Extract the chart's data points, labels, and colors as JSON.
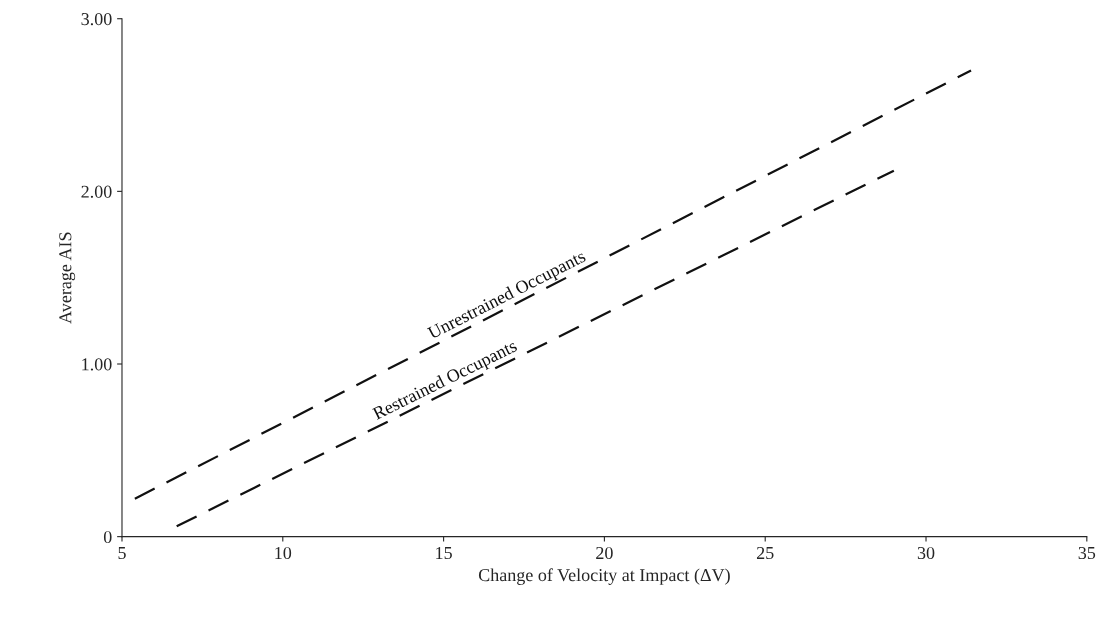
{
  "chart_data": {
    "type": "line",
    "xlabel": "Change of Velocity at Impact (ΔV)",
    "ylabel": "Average AIS",
    "xlim": [
      5,
      35
    ],
    "xticks": [
      5,
      10,
      15,
      20,
      25,
      30,
      35
    ],
    "ylim": [
      0,
      3.0
    ],
    "yticks": [
      0,
      {
        "value": 1.0,
        "label": "1.00"
      },
      {
        "value": 2.0,
        "label": "2.00"
      },
      {
        "value": 3.0,
        "label": "3.00"
      }
    ],
    "grid": false,
    "legend": false,
    "marker": "none",
    "line_style": "dashed",
    "series": [
      {
        "name": "Unrestrained Occupants",
        "color": "#111111",
        "x": [
          5.4,
          31.4
        ],
        "values": [
          0.22,
          2.7
        ]
      },
      {
        "name": "Restrained Occupants",
        "color": "#111111",
        "x": [
          6.7,
          29.0
        ],
        "values": [
          0.06,
          2.12
        ]
      }
    ]
  }
}
